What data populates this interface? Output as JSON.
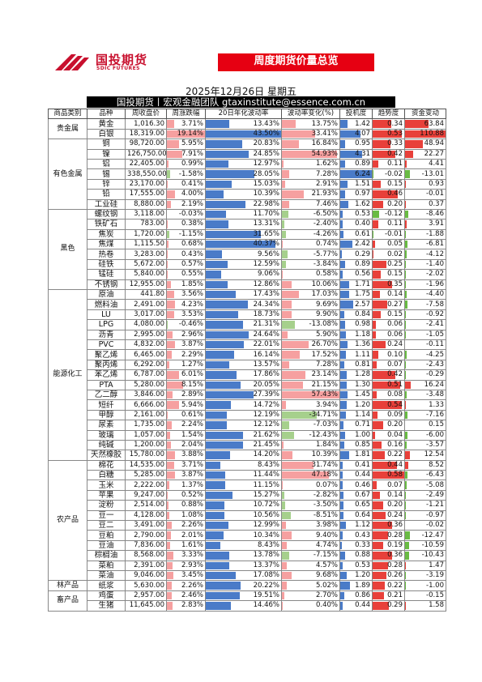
{
  "header": {
    "logo_cn": "国投期货",
    "logo_en": "SDIC FUTURES",
    "banner": "周度期货价量总览",
    "date": "2025年12月26日 星期五",
    "subtitle": "国投期货丨宏观金融团队 gtaxinstitute@essence.com.cn"
  },
  "columns": [
    "商品类别",
    "品种",
    "周收盘价",
    "周涨跌幅",
    "20日年化波动率",
    "波动率变化(%)",
    "投机度",
    "趋势度",
    "资金变动"
  ],
  "groups": [
    {
      "category": "贵金属",
      "rows": [
        {
          "name": "黄金",
          "close": "1,016.30",
          "chg": "3.71%",
          "vol": "13.43%",
          "volchg": "13.75%",
          "spec": "1.42",
          "trend": "0.34",
          "flow": "63.84"
        },
        {
          "name": "白银",
          "close": "18,319.00",
          "chg": "19.14%",
          "vol": "43.50%",
          "volchg": "33.41%",
          "spec": "4.07",
          "trend": "0.53",
          "flow": "110.88"
        }
      ]
    },
    {
      "category": "有色金属",
      "rows": [
        {
          "name": "铜",
          "close": "98,720.00",
          "chg": "5.95%",
          "vol": "20.83%",
          "volchg": "16.84%",
          "spec": "0.95",
          "trend": "0.33",
          "flow": "48.94"
        },
        {
          "name": "镍",
          "close": "126,750.00",
          "chg": "7.91%",
          "vol": "24.85%",
          "volchg": "54.93%",
          "spec": "4.31",
          "trend": "0.42",
          "flow": "22.27"
        },
        {
          "name": "铝",
          "close": "22,405.00",
          "chg": "0.99%",
          "vol": "12.97%",
          "volchg": "1.62%",
          "spec": "0.89",
          "trend": "0.11",
          "flow": "4.41"
        },
        {
          "name": "锡",
          "close": "338,550.00",
          "chg": "-1.58%",
          "vol": "28.05%",
          "volchg": "7.28%",
          "spec": "6.24",
          "trend": "-0.02",
          "flow": "-13.01"
        },
        {
          "name": "锌",
          "close": "23,170.00",
          "chg": "0.41%",
          "vol": "15.03%",
          "volchg": "2.91%",
          "spec": "1.51",
          "trend": "0.15",
          "flow": "0.93"
        },
        {
          "name": "铅",
          "close": "17,555.00",
          "chg": "4.00%",
          "vol": "10.39%",
          "volchg": "21.93%",
          "spec": "0.97",
          "trend": "0.46",
          "flow": "-0.01"
        },
        {
          "name": "工业硅",
          "close": "8,880.00",
          "chg": "2.19%",
          "vol": "22.98%",
          "volchg": "7.46%",
          "spec": "1.62",
          "trend": "0.20",
          "flow": "0.37"
        }
      ]
    },
    {
      "category": "黑色",
      "rows": [
        {
          "name": "螺纹钢",
          "close": "3,118.00",
          "chg": "-0.03%",
          "vol": "11.70%",
          "volchg": "-6.50%",
          "spec": "0.53",
          "trend": "-0.12",
          "flow": "-8.46"
        },
        {
          "name": "铁矿石",
          "close": "783.00",
          "chg": "0.38%",
          "vol": "13.31%",
          "volchg": "-2.40%",
          "spec": "0.40",
          "trend": "0.11",
          "flow": "3.91"
        },
        {
          "name": "焦炭",
          "close": "1,720.00",
          "chg": "-1.15%",
          "vol": "31.65%",
          "volchg": "-4.26%",
          "spec": "0.61",
          "trend": "-0.01",
          "flow": "-1.88"
        },
        {
          "name": "焦煤",
          "close": "1,115.50",
          "chg": "0.68%",
          "vol": "40.37%",
          "volchg": "0.74%",
          "spec": "2.42",
          "trend": "0.05",
          "flow": "-6.81"
        },
        {
          "name": "热卷",
          "close": "3,283.00",
          "chg": "0.43%",
          "vol": "9.56%",
          "volchg": "-5.77%",
          "spec": "0.29",
          "trend": "0.02",
          "flow": "-4.12"
        },
        {
          "name": "硅铁",
          "close": "5,672.00",
          "chg": "0.57%",
          "vol": "12.59%",
          "volchg": "-3.84%",
          "spec": "0.89",
          "trend": "0.25",
          "flow": "-1.40"
        },
        {
          "name": "锰硅",
          "close": "5,840.00",
          "chg": "0.55%",
          "vol": "9.06%",
          "volchg": "0.58%",
          "spec": "0.56",
          "trend": "0.15",
          "flow": "-2.02"
        },
        {
          "name": "不锈钢",
          "close": "12,955.00",
          "chg": "1.85%",
          "vol": "12.86%",
          "volchg": "10.06%",
          "spec": "1.71",
          "trend": "0.35",
          "flow": "-1.96"
        }
      ]
    },
    {
      "category": "能源化工",
      "rows": [
        {
          "name": "原油",
          "close": "441.80",
          "chg": "3.56%",
          "vol": "17.43%",
          "volchg": "17.03%",
          "spec": "1.75",
          "trend": "0.14",
          "flow": "-4.40"
        },
        {
          "name": "燃料油",
          "close": "2,491.00",
          "chg": "4.23%",
          "vol": "24.34%",
          "volchg": "9.69%",
          "spec": "2.57",
          "trend": "0.27",
          "flow": "-7.58"
        },
        {
          "name": "LU",
          "close": "3,017.00",
          "chg": "3.53%",
          "vol": "18.73%",
          "volchg": "9.90%",
          "spec": "0.84",
          "trend": "0.15",
          "flow": "-0.92"
        },
        {
          "name": "LPG",
          "close": "4,080.00",
          "chg": "-0.46%",
          "vol": "21.31%",
          "volchg": "-13.08%",
          "spec": "0.98",
          "trend": "0.06",
          "flow": "-2.41"
        },
        {
          "name": "沥青",
          "close": "2,995.00",
          "chg": "2.96%",
          "vol": "24.64%",
          "volchg": "5.90%",
          "spec": "1.18",
          "trend": "0.06",
          "flow": "-1.05"
        },
        {
          "name": "PVC",
          "close": "4,832.00",
          "chg": "3.87%",
          "vol": "22.01%",
          "volchg": "26.70%",
          "spec": "1.36",
          "trend": "0.24",
          "flow": "-0.11"
        },
        {
          "name": "聚乙烯",
          "close": "6,465.00",
          "chg": "2.29%",
          "vol": "16.14%",
          "volchg": "17.52%",
          "spec": "1.11",
          "trend": "0.10",
          "flow": "-4.25"
        },
        {
          "name": "聚丙烯",
          "close": "6,292.00",
          "chg": "1.27%",
          "vol": "13.57%",
          "volchg": "7.28%",
          "spec": "0.81",
          "trend": "0.07",
          "flow": "-2.43"
        },
        {
          "name": "苯乙烯",
          "close": "6,787.00",
          "chg": "6.01%",
          "vol": "17.86%",
          "volchg": "23.14%",
          "spec": "1.28",
          "trend": "0.42",
          "flow": "-0.29"
        },
        {
          "name": "PTA",
          "close": "5,280.00",
          "chg": "8.15%",
          "vol": "20.05%",
          "volchg": "21.15%",
          "spec": "1.30",
          "trend": "0.51",
          "flow": "16.24"
        },
        {
          "name": "乙二醇",
          "close": "3,846.00",
          "chg": "2.89%",
          "vol": "27.39%",
          "volchg": "57.43%",
          "spec": "1.45",
          "trend": "0.08",
          "flow": "-3.48"
        },
        {
          "name": "短纤",
          "close": "6,666.00",
          "chg": "5.94%",
          "vol": "14.72%",
          "volchg": "3.94%",
          "spec": "1.20",
          "trend": "0.54",
          "flow": "1.33"
        },
        {
          "name": "甲醇",
          "close": "2,161.00",
          "chg": "0.61%",
          "vol": "12.19%",
          "volchg": "-34.71%",
          "spec": "1.14",
          "trend": "0.09",
          "flow": "-7.16"
        },
        {
          "name": "尿素",
          "close": "1,735.00",
          "chg": "2.24%",
          "vol": "12.12%",
          "volchg": "-7.03%",
          "spec": "0.71",
          "trend": "0.20",
          "flow": "0.15"
        },
        {
          "name": "玻璃",
          "close": "1,057.00",
          "chg": "1.54%",
          "vol": "21.62%",
          "volchg": "-12.43%",
          "spec": "1.00",
          "trend": "0.04",
          "flow": "-6.00"
        },
        {
          "name": "纯碱",
          "close": "1,200.00",
          "chg": "2.04%",
          "vol": "21.45%",
          "volchg": "1.84%",
          "spec": "0.85",
          "trend": "0.16",
          "flow": "-3.57"
        },
        {
          "name": "天然橡胶",
          "close": "15,780.00",
          "chg": "3.88%",
          "vol": "14.20%",
          "volchg": "10.39%",
          "spec": "1.81",
          "trend": "0.22",
          "flow": "12.54"
        }
      ]
    },
    {
      "category": "农产品",
      "rows": [
        {
          "name": "棉花",
          "close": "14,535.00",
          "chg": "3.71%",
          "vol": "8.43%",
          "volchg": "31.74%",
          "spec": "0.41",
          "trend": "0.44",
          "flow": "8.52"
        },
        {
          "name": "白糖",
          "close": "5,285.00",
          "chg": "3.87%",
          "vol": "11.44%",
          "volchg": "47.18%",
          "spec": "0.44",
          "trend": "0.58",
          "flow": "-6.43"
        },
        {
          "name": "玉米",
          "close": "2,222.00",
          "chg": "1.37%",
          "vol": "11.15%",
          "volchg": "0.07%",
          "spec": "0.46",
          "trend": "0.07",
          "flow": "-5.08"
        },
        {
          "name": "苹果",
          "close": "9,247.00",
          "chg": "0.52%",
          "vol": "15.27%",
          "volchg": "-2.82%",
          "spec": "0.67",
          "trend": "0.14",
          "flow": "-2.49"
        },
        {
          "name": "淀粉",
          "close": "2,514.00",
          "chg": "0.88%",
          "vol": "10.72%",
          "volchg": "-3.50%",
          "spec": "0.65",
          "trend": "0.20",
          "flow": "-1.21"
        },
        {
          "name": "豆一",
          "close": "4,128.00",
          "chg": "1.08%",
          "vol": "10.56%",
          "volchg": "-8.51%",
          "spec": "0.64",
          "trend": "0.24",
          "flow": "-0.97"
        },
        {
          "name": "豆二",
          "close": "3,491.00",
          "chg": "2.26%",
          "vol": "12.99%",
          "volchg": "3.98%",
          "spec": "1.12",
          "trend": "0.36",
          "flow": "-0.02"
        },
        {
          "name": "豆粕",
          "close": "2,790.00",
          "chg": "2.01%",
          "vol": "10.34%",
          "volchg": "9.40%",
          "spec": "0.43",
          "trend": "0.28",
          "flow": "-12.47"
        },
        {
          "name": "豆油",
          "close": "7,836.00",
          "chg": "1.61%",
          "vol": "8.43%",
          "volchg": "4.74%",
          "spec": "0.33",
          "trend": "0.19",
          "flow": "-10.59"
        },
        {
          "name": "棕榈油",
          "close": "8,568.00",
          "chg": "3.33%",
          "vol": "13.78%",
          "volchg": "-7.15%",
          "spec": "0.88",
          "trend": "0.36",
          "flow": "-10.43"
        },
        {
          "name": "菜粕",
          "close": "2,391.00",
          "chg": "2.93%",
          "vol": "13.37%",
          "volchg": "4.57%",
          "spec": "0.53",
          "trend": "0.28",
          "flow": "1.47"
        },
        {
          "name": "菜油",
          "close": "9,046.00",
          "chg": "3.45%",
          "vol": "17.08%",
          "volchg": "9.68%",
          "spec": "1.20",
          "trend": "0.26",
          "flow": "-3.19"
        }
      ]
    },
    {
      "category": "林产品",
      "rows": [
        {
          "name": "纸浆",
          "close": "5,630.00",
          "chg": "2.26%",
          "vol": "20.22%",
          "volchg": "5.02%",
          "spec": "1.89",
          "trend": "0.22",
          "flow": "-1.00"
        }
      ]
    },
    {
      "category": "畜产品",
      "rows": [
        {
          "name": "鸡蛋",
          "close": "2,957.00",
          "chg": "2.46%",
          "vol": "19.51%",
          "volchg": "2.70%",
          "spec": "0.86",
          "trend": "0.21",
          "flow": "-0.15"
        },
        {
          "name": "生猪",
          "close": "11,645.00",
          "chg": "2.83%",
          "vol": "14.46%",
          "volchg": "0.40%",
          "spec": "0.44",
          "trend": "0.29",
          "flow": "1.58"
        }
      ]
    }
  ],
  "colors": {
    "up": "#f6a0a0",
    "down": "#a6d08c",
    "vol": "#4a7bc8",
    "trend_up": "#e8403a",
    "trend_down": "#69bb43",
    "brand": "#e60012"
  }
}
